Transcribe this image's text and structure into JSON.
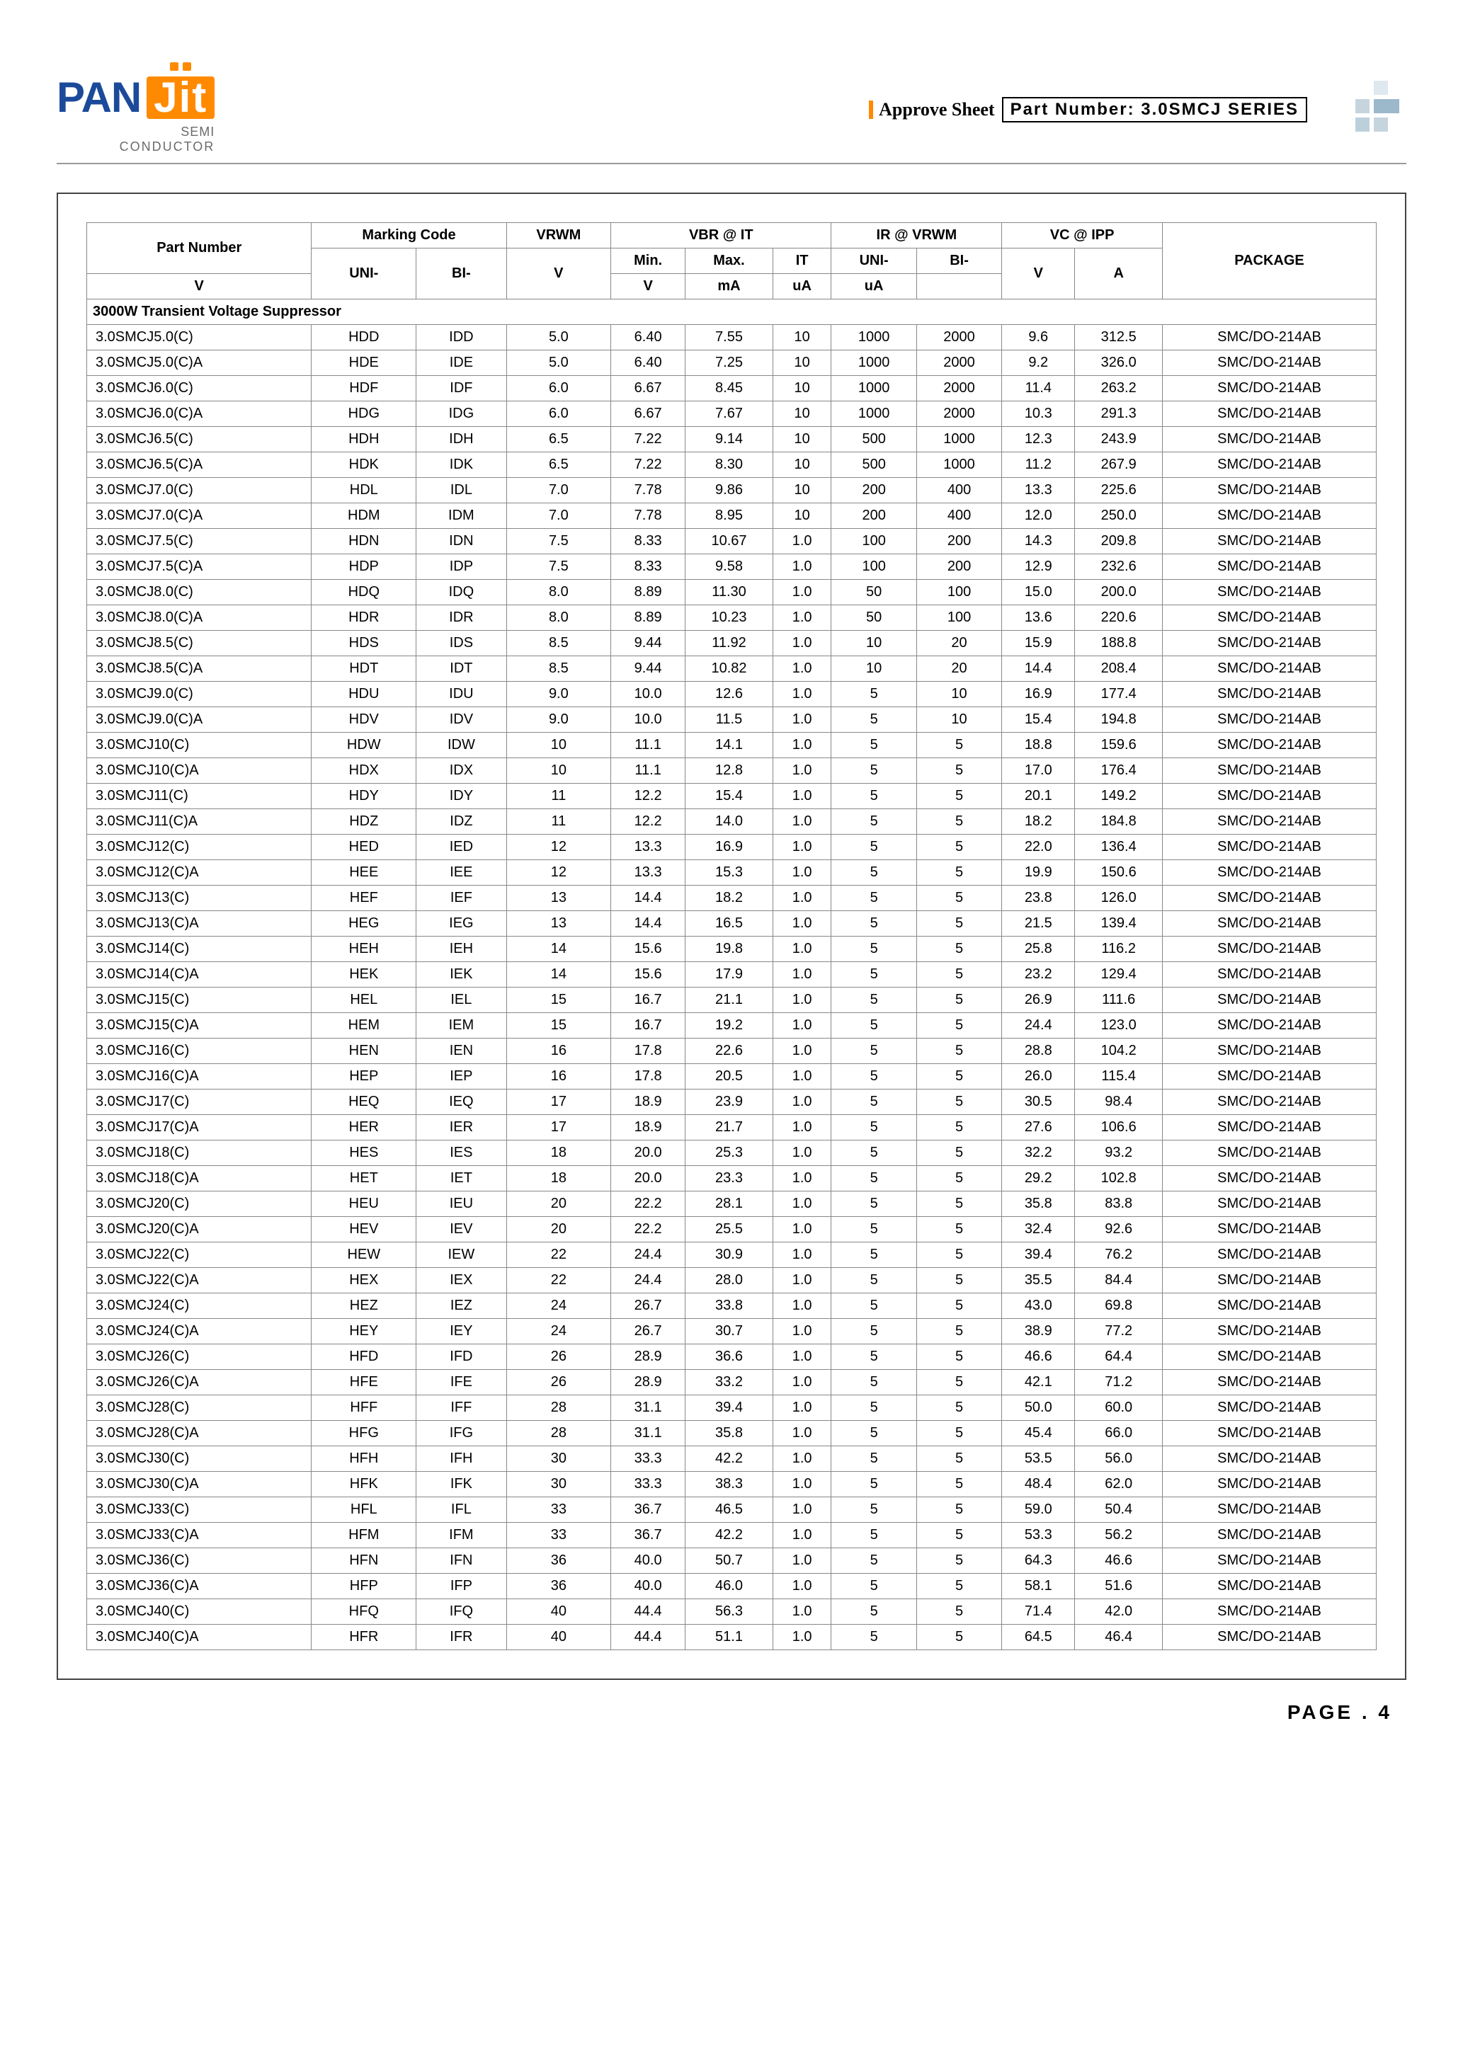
{
  "header": {
    "logo_text1": "PAN",
    "logo_text2": "Jit",
    "logo_sub1": "SEMI",
    "logo_sub2": "CONDUCTOR",
    "approve": "Approve Sheet",
    "part_number_label": "Part Number: 3.0SMCJ SERIES"
  },
  "footer": {
    "page": "PAGE . 4"
  },
  "table": {
    "headers": {
      "part_number": "Part Number",
      "marking": "Marking Code",
      "vrwm": "VRWM",
      "vbr": "VBR @ IT",
      "ir": "IR @ VRWM",
      "vc": "VC @ IPP",
      "package": "PACKAGE",
      "uni": "UNI-",
      "bi": "BI-",
      "v": "V",
      "min": "Min.",
      "max": "Max.",
      "it": "IT",
      "ma": "mA",
      "ua": "uA",
      "a": "A"
    },
    "section": "3000W Transient Voltage Suppressor",
    "rows": [
      [
        "3.0SMCJ5.0(C)",
        "HDD",
        "IDD",
        "5.0",
        "6.40",
        "7.55",
        "10",
        "1000",
        "2000",
        "9.6",
        "312.5",
        "SMC/DO-214AB"
      ],
      [
        "3.0SMCJ5.0(C)A",
        "HDE",
        "IDE",
        "5.0",
        "6.40",
        "7.25",
        "10",
        "1000",
        "2000",
        "9.2",
        "326.0",
        "SMC/DO-214AB"
      ],
      [
        "3.0SMCJ6.0(C)",
        "HDF",
        "IDF",
        "6.0",
        "6.67",
        "8.45",
        "10",
        "1000",
        "2000",
        "11.4",
        "263.2",
        "SMC/DO-214AB"
      ],
      [
        "3.0SMCJ6.0(C)A",
        "HDG",
        "IDG",
        "6.0",
        "6.67",
        "7.67",
        "10",
        "1000",
        "2000",
        "10.3",
        "291.3",
        "SMC/DO-214AB"
      ],
      [
        "3.0SMCJ6.5(C)",
        "HDH",
        "IDH",
        "6.5",
        "7.22",
        "9.14",
        "10",
        "500",
        "1000",
        "12.3",
        "243.9",
        "SMC/DO-214AB"
      ],
      [
        "3.0SMCJ6.5(C)A",
        "HDK",
        "IDK",
        "6.5",
        "7.22",
        "8.30",
        "10",
        "500",
        "1000",
        "11.2",
        "267.9",
        "SMC/DO-214AB"
      ],
      [
        "3.0SMCJ7.0(C)",
        "HDL",
        "IDL",
        "7.0",
        "7.78",
        "9.86",
        "10",
        "200",
        "400",
        "13.3",
        "225.6",
        "SMC/DO-214AB"
      ],
      [
        "3.0SMCJ7.0(C)A",
        "HDM",
        "IDM",
        "7.0",
        "7.78",
        "8.95",
        "10",
        "200",
        "400",
        "12.0",
        "250.0",
        "SMC/DO-214AB"
      ],
      [
        "3.0SMCJ7.5(C)",
        "HDN",
        "IDN",
        "7.5",
        "8.33",
        "10.67",
        "1.0",
        "100",
        "200",
        "14.3",
        "209.8",
        "SMC/DO-214AB"
      ],
      [
        "3.0SMCJ7.5(C)A",
        "HDP",
        "IDP",
        "7.5",
        "8.33",
        "9.58",
        "1.0",
        "100",
        "200",
        "12.9",
        "232.6",
        "SMC/DO-214AB"
      ],
      [
        "3.0SMCJ8.0(C)",
        "HDQ",
        "IDQ",
        "8.0",
        "8.89",
        "11.30",
        "1.0",
        "50",
        "100",
        "15.0",
        "200.0",
        "SMC/DO-214AB"
      ],
      [
        "3.0SMCJ8.0(C)A",
        "HDR",
        "IDR",
        "8.0",
        "8.89",
        "10.23",
        "1.0",
        "50",
        "100",
        "13.6",
        "220.6",
        "SMC/DO-214AB"
      ],
      [
        "3.0SMCJ8.5(C)",
        "HDS",
        "IDS",
        "8.5",
        "9.44",
        "11.92",
        "1.0",
        "10",
        "20",
        "15.9",
        "188.8",
        "SMC/DO-214AB"
      ],
      [
        "3.0SMCJ8.5(C)A",
        "HDT",
        "IDT",
        "8.5",
        "9.44",
        "10.82",
        "1.0",
        "10",
        "20",
        "14.4",
        "208.4",
        "SMC/DO-214AB"
      ],
      [
        "3.0SMCJ9.0(C)",
        "HDU",
        "IDU",
        "9.0",
        "10.0",
        "12.6",
        "1.0",
        "5",
        "10",
        "16.9",
        "177.4",
        "SMC/DO-214AB"
      ],
      [
        "3.0SMCJ9.0(C)A",
        "HDV",
        "IDV",
        "9.0",
        "10.0",
        "11.5",
        "1.0",
        "5",
        "10",
        "15.4",
        "194.8",
        "SMC/DO-214AB"
      ],
      [
        "3.0SMCJ10(C)",
        "HDW",
        "IDW",
        "10",
        "11.1",
        "14.1",
        "1.0",
        "5",
        "5",
        "18.8",
        "159.6",
        "SMC/DO-214AB"
      ],
      [
        "3.0SMCJ10(C)A",
        "HDX",
        "IDX",
        "10",
        "11.1",
        "12.8",
        "1.0",
        "5",
        "5",
        "17.0",
        "176.4",
        "SMC/DO-214AB"
      ],
      [
        "3.0SMCJ11(C)",
        "HDY",
        "IDY",
        "11",
        "12.2",
        "15.4",
        "1.0",
        "5",
        "5",
        "20.1",
        "149.2",
        "SMC/DO-214AB"
      ],
      [
        "3.0SMCJ11(C)A",
        "HDZ",
        "IDZ",
        "11",
        "12.2",
        "14.0",
        "1.0",
        "5",
        "5",
        "18.2",
        "184.8",
        "SMC/DO-214AB"
      ],
      [
        "3.0SMCJ12(C)",
        "HED",
        "IED",
        "12",
        "13.3",
        "16.9",
        "1.0",
        "5",
        "5",
        "22.0",
        "136.4",
        "SMC/DO-214AB"
      ],
      [
        "3.0SMCJ12(C)A",
        "HEE",
        "IEE",
        "12",
        "13.3",
        "15.3",
        "1.0",
        "5",
        "5",
        "19.9",
        "150.6",
        "SMC/DO-214AB"
      ],
      [
        "3.0SMCJ13(C)",
        "HEF",
        "IEF",
        "13",
        "14.4",
        "18.2",
        "1.0",
        "5",
        "5",
        "23.8",
        "126.0",
        "SMC/DO-214AB"
      ],
      [
        "3.0SMCJ13(C)A",
        "HEG",
        "IEG",
        "13",
        "14.4",
        "16.5",
        "1.0",
        "5",
        "5",
        "21.5",
        "139.4",
        "SMC/DO-214AB"
      ],
      [
        "3.0SMCJ14(C)",
        "HEH",
        "IEH",
        "14",
        "15.6",
        "19.8",
        "1.0",
        "5",
        "5",
        "25.8",
        "116.2",
        "SMC/DO-214AB"
      ],
      [
        "3.0SMCJ14(C)A",
        "HEK",
        "IEK",
        "14",
        "15.6",
        "17.9",
        "1.0",
        "5",
        "5",
        "23.2",
        "129.4",
        "SMC/DO-214AB"
      ],
      [
        "3.0SMCJ15(C)",
        "HEL",
        "IEL",
        "15",
        "16.7",
        "21.1",
        "1.0",
        "5",
        "5",
        "26.9",
        "111.6",
        "SMC/DO-214AB"
      ],
      [
        "3.0SMCJ15(C)A",
        "HEM",
        "IEM",
        "15",
        "16.7",
        "19.2",
        "1.0",
        "5",
        "5",
        "24.4",
        "123.0",
        "SMC/DO-214AB"
      ],
      [
        "3.0SMCJ16(C)",
        "HEN",
        "IEN",
        "16",
        "17.8",
        "22.6",
        "1.0",
        "5",
        "5",
        "28.8",
        "104.2",
        "SMC/DO-214AB"
      ],
      [
        "3.0SMCJ16(C)A",
        "HEP",
        "IEP",
        "16",
        "17.8",
        "20.5",
        "1.0",
        "5",
        "5",
        "26.0",
        "115.4",
        "SMC/DO-214AB"
      ],
      [
        "3.0SMCJ17(C)",
        "HEQ",
        "IEQ",
        "17",
        "18.9",
        "23.9",
        "1.0",
        "5",
        "5",
        "30.5",
        "98.4",
        "SMC/DO-214AB"
      ],
      [
        "3.0SMCJ17(C)A",
        "HER",
        "IER",
        "17",
        "18.9",
        "21.7",
        "1.0",
        "5",
        "5",
        "27.6",
        "106.6",
        "SMC/DO-214AB"
      ],
      [
        "3.0SMCJ18(C)",
        "HES",
        "IES",
        "18",
        "20.0",
        "25.3",
        "1.0",
        "5",
        "5",
        "32.2",
        "93.2",
        "SMC/DO-214AB"
      ],
      [
        "3.0SMCJ18(C)A",
        "HET",
        "IET",
        "18",
        "20.0",
        "23.3",
        "1.0",
        "5",
        "5",
        "29.2",
        "102.8",
        "SMC/DO-214AB"
      ],
      [
        "3.0SMCJ20(C)",
        "HEU",
        "IEU",
        "20",
        "22.2",
        "28.1",
        "1.0",
        "5",
        "5",
        "35.8",
        "83.8",
        "SMC/DO-214AB"
      ],
      [
        "3.0SMCJ20(C)A",
        "HEV",
        "IEV",
        "20",
        "22.2",
        "25.5",
        "1.0",
        "5",
        "5",
        "32.4",
        "92.6",
        "SMC/DO-214AB"
      ],
      [
        "3.0SMCJ22(C)",
        "HEW",
        "IEW",
        "22",
        "24.4",
        "30.9",
        "1.0",
        "5",
        "5",
        "39.4",
        "76.2",
        "SMC/DO-214AB"
      ],
      [
        "3.0SMCJ22(C)A",
        "HEX",
        "IEX",
        "22",
        "24.4",
        "28.0",
        "1.0",
        "5",
        "5",
        "35.5",
        "84.4",
        "SMC/DO-214AB"
      ],
      [
        "3.0SMCJ24(C)",
        "HEZ",
        "IEZ",
        "24",
        "26.7",
        "33.8",
        "1.0",
        "5",
        "5",
        "43.0",
        "69.8",
        "SMC/DO-214AB"
      ],
      [
        "3.0SMCJ24(C)A",
        "HEY",
        "IEY",
        "24",
        "26.7",
        "30.7",
        "1.0",
        "5",
        "5",
        "38.9",
        "77.2",
        "SMC/DO-214AB"
      ],
      [
        "3.0SMCJ26(C)",
        "HFD",
        "IFD",
        "26",
        "28.9",
        "36.6",
        "1.0",
        "5",
        "5",
        "46.6",
        "64.4",
        "SMC/DO-214AB"
      ],
      [
        "3.0SMCJ26(C)A",
        "HFE",
        "IFE",
        "26",
        "28.9",
        "33.2",
        "1.0",
        "5",
        "5",
        "42.1",
        "71.2",
        "SMC/DO-214AB"
      ],
      [
        "3.0SMCJ28(C)",
        "HFF",
        "IFF",
        "28",
        "31.1",
        "39.4",
        "1.0",
        "5",
        "5",
        "50.0",
        "60.0",
        "SMC/DO-214AB"
      ],
      [
        "3.0SMCJ28(C)A",
        "HFG",
        "IFG",
        "28",
        "31.1",
        "35.8",
        "1.0",
        "5",
        "5",
        "45.4",
        "66.0",
        "SMC/DO-214AB"
      ],
      [
        "3.0SMCJ30(C)",
        "HFH",
        "IFH",
        "30",
        "33.3",
        "42.2",
        "1.0",
        "5",
        "5",
        "53.5",
        "56.0",
        "SMC/DO-214AB"
      ],
      [
        "3.0SMCJ30(C)A",
        "HFK",
        "IFK",
        "30",
        "33.3",
        "38.3",
        "1.0",
        "5",
        "5",
        "48.4",
        "62.0",
        "SMC/DO-214AB"
      ],
      [
        "3.0SMCJ33(C)",
        "HFL",
        "IFL",
        "33",
        "36.7",
        "46.5",
        "1.0",
        "5",
        "5",
        "59.0",
        "50.4",
        "SMC/DO-214AB"
      ],
      [
        "3.0SMCJ33(C)A",
        "HFM",
        "IFM",
        "33",
        "36.7",
        "42.2",
        "1.0",
        "5",
        "5",
        "53.3",
        "56.2",
        "SMC/DO-214AB"
      ],
      [
        "3.0SMCJ36(C)",
        "HFN",
        "IFN",
        "36",
        "40.0",
        "50.7",
        "1.0",
        "5",
        "5",
        "64.3",
        "46.6",
        "SMC/DO-214AB"
      ],
      [
        "3.0SMCJ36(C)A",
        "HFP",
        "IFP",
        "36",
        "40.0",
        "46.0",
        "1.0",
        "5",
        "5",
        "58.1",
        "51.6",
        "SMC/DO-214AB"
      ],
      [
        "3.0SMCJ40(C)",
        "HFQ",
        "IFQ",
        "40",
        "44.4",
        "56.3",
        "1.0",
        "5",
        "5",
        "71.4",
        "42.0",
        "SMC/DO-214AB"
      ],
      [
        "3.0SMCJ40(C)A",
        "HFR",
        "IFR",
        "40",
        "44.4",
        "51.1",
        "1.0",
        "5",
        "5",
        "64.5",
        "46.4",
        "SMC/DO-214AB"
      ]
    ]
  }
}
